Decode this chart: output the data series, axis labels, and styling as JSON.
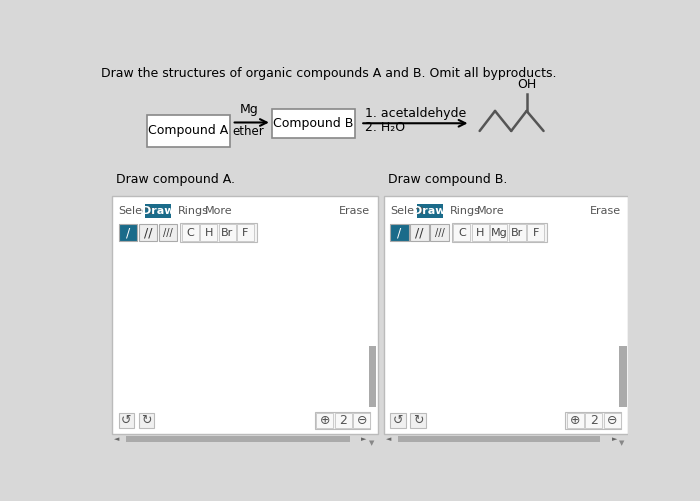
{
  "title": "Draw the structures of organic compounds A and B. Omit all byproducts.",
  "title_fontsize": 9,
  "bg_color": "#d8d8d8",
  "white_bg": "#ffffff",
  "panel_border": "#bbbbbb",
  "draw_btn_color": "#1a6b8a",
  "draw_btn_text": "#ffffff",
  "compound_a_label": "Compound A",
  "compound_b_label": "Compound B",
  "mg_label": "Mg",
  "ether_label": "ether",
  "reaction_step1": "1. acetaldehyde",
  "reaction_step2": "2. H₂O",
  "draw_a_title": "Draw compound A.",
  "draw_b_title": "Draw compound B.",
  "btn_a_labels": [
    "C",
    "H",
    "Br",
    "F"
  ],
  "btn_b_labels": [
    "C",
    "H",
    "Mg",
    "Br",
    "F"
  ],
  "skeleton_color": "#555555"
}
